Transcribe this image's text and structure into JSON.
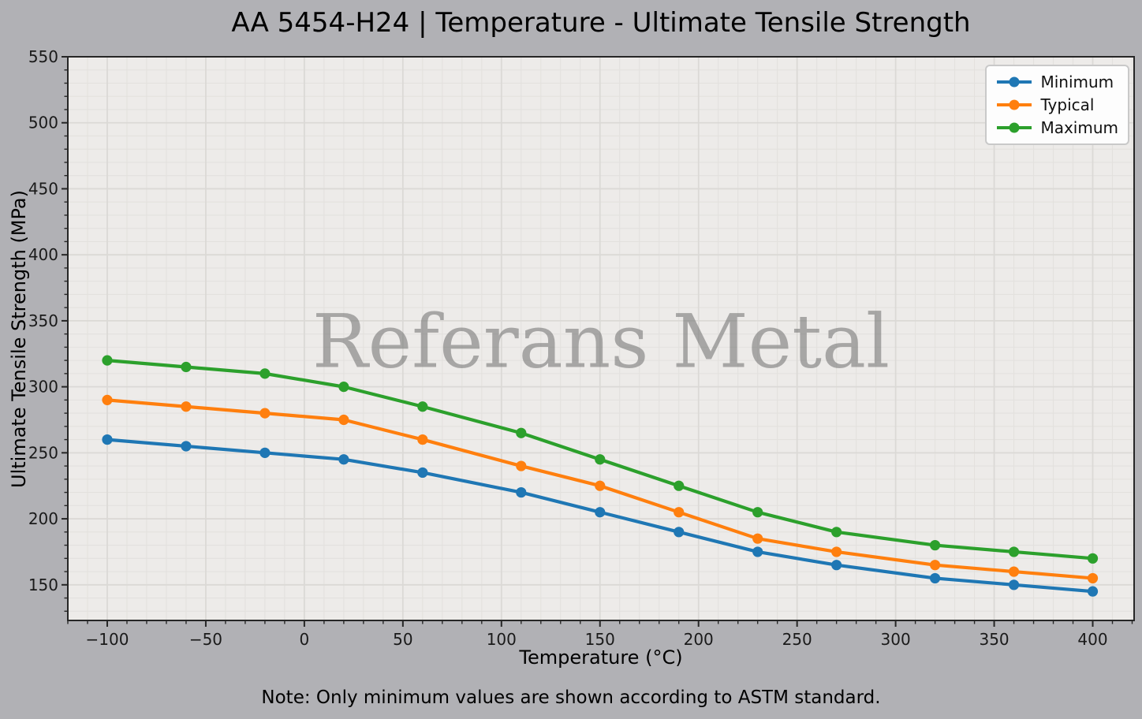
{
  "chart_data": {
    "type": "line",
    "title": "AA 5454-H24 | Temperature - Ultimate Tensile Strength",
    "xlabel": "Temperature (°C)",
    "ylabel": "Ultimate Tensile Strength (MPa)",
    "note": "Note: Only minimum values are shown according to ASTM standard.",
    "watermark": "Referans Metal",
    "x": [
      -100,
      -60,
      -20,
      20,
      60,
      110,
      150,
      190,
      230,
      270,
      320,
      360,
      400
    ],
    "series": [
      {
        "name": "Minimum",
        "color": "#1f77b4",
        "values": [
          260,
          255,
          250,
          245,
          235,
          220,
          205,
          190,
          175,
          165,
          155,
          150,
          145
        ]
      },
      {
        "name": "Typical",
        "color": "#ff7f0e",
        "values": [
          290,
          285,
          280,
          275,
          260,
          240,
          225,
          205,
          185,
          175,
          165,
          160,
          155
        ]
      },
      {
        "name": "Maximum",
        "color": "#2ca02c",
        "values": [
          320,
          315,
          310,
          300,
          285,
          265,
          245,
          225,
          205,
          190,
          180,
          175,
          170
        ]
      }
    ],
    "xlim": [
      -120,
      421
    ],
    "ylim": [
      123,
      550
    ],
    "xticks": [
      -100,
      -50,
      0,
      50,
      100,
      150,
      200,
      250,
      300,
      350,
      400
    ],
    "yticks": [
      150,
      200,
      250,
      300,
      350,
      400,
      450,
      500,
      550
    ],
    "minor_tick_step": 10,
    "grid": true,
    "legend_position": "upper right",
    "colors": {
      "figure_bg": "#b1b1b5",
      "plot_bg": "#edebe9",
      "grid_major": "#dbd9d6",
      "grid_minor": "#e3e1de",
      "spine": "#262626",
      "tick_text": "#1a1a1a",
      "watermark": "#6e6e6e",
      "legend_bg": "#fdfdfd",
      "legend_border": "#c9c9c9"
    }
  }
}
